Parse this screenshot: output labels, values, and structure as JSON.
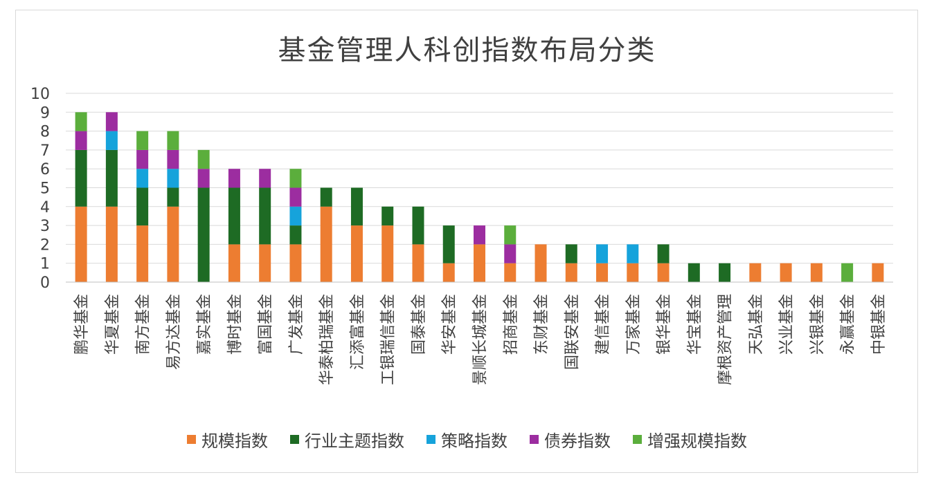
{
  "chart_data": {
    "type": "bar",
    "stacked": true,
    "title": "基金管理人科创指数布局分类",
    "ylim": [
      0,
      10
    ],
    "yticks": [
      "0",
      "1",
      "2",
      "3",
      "4",
      "5",
      "6",
      "7",
      "8",
      "9",
      "10"
    ],
    "grid": true,
    "legend_position": "bottom",
    "categories": [
      "鹏华基金",
      "华夏基金",
      "南方基金",
      "易方达基金",
      "嘉实基金",
      "博时基金",
      "富国基金",
      "广发基金",
      "华泰柏瑞基金",
      "汇添富基金",
      "工银瑞信基金",
      "国泰基金",
      "华安基金",
      "景顺长城基金",
      "招商基金",
      "东财基金",
      "国联安基金",
      "建信基金",
      "万家基金",
      "银华基金",
      "华宝基金",
      "摩根资产管理",
      "天弘基金",
      "兴业基金",
      "兴银基金",
      "永赢基金",
      "中银基金"
    ],
    "series": [
      {
        "name": "规模指数",
        "color": "#ED7D31",
        "values": [
          4,
          4,
          3,
          4,
          0,
          2,
          2,
          2,
          4,
          3,
          3,
          2,
          1,
          2,
          1,
          2,
          1,
          1,
          1,
          1,
          0,
          0,
          1,
          1,
          1,
          0,
          1
        ]
      },
      {
        "name": "行业主题指数",
        "color": "#1E6B24",
        "values": [
          3,
          3,
          2,
          1,
          5,
          3,
          3,
          1,
          1,
          2,
          1,
          2,
          2,
          0,
          0,
          0,
          1,
          0,
          0,
          1,
          1,
          1,
          0,
          0,
          0,
          0,
          0
        ]
      },
      {
        "name": "策略指数",
        "color": "#16A3DB",
        "values": [
          0,
          1,
          1,
          1,
          0,
          0,
          0,
          1,
          0,
          0,
          0,
          0,
          0,
          0,
          0,
          0,
          0,
          1,
          1,
          0,
          0,
          0,
          0,
          0,
          0,
          0,
          0
        ]
      },
      {
        "name": "债券指数",
        "color": "#9C2DA0",
        "values": [
          1,
          1,
          1,
          1,
          1,
          1,
          1,
          1,
          0,
          0,
          0,
          0,
          0,
          1,
          1,
          0,
          0,
          0,
          0,
          0,
          0,
          0,
          0,
          0,
          0,
          0,
          0
        ]
      },
      {
        "name": "增强规模指数",
        "color": "#5BAE3C",
        "values": [
          1,
          0,
          1,
          1,
          1,
          0,
          0,
          1,
          0,
          0,
          0,
          0,
          0,
          0,
          1,
          0,
          0,
          0,
          0,
          0,
          0,
          0,
          0,
          0,
          0,
          1,
          0
        ]
      }
    ]
  }
}
